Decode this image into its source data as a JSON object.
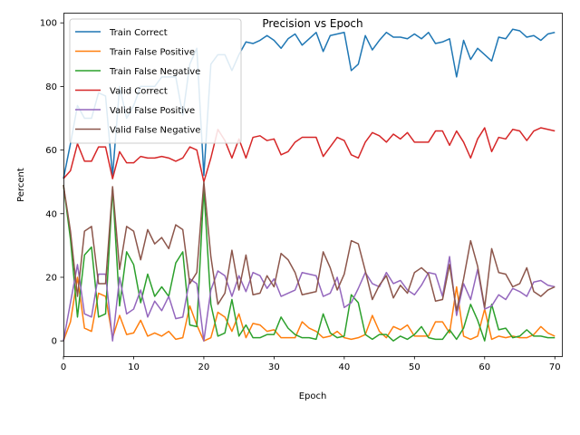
{
  "chart_data": {
    "type": "line",
    "title": "Precision vs Epoch",
    "xlabel": "Epoch",
    "ylabel": "Percent",
    "xlim": [
      0,
      71
    ],
    "ylim": [
      -4.8,
      103.2
    ],
    "xticks": [
      0,
      10,
      20,
      30,
      40,
      50,
      60,
      70
    ],
    "yticks": [
      0,
      20,
      40,
      60,
      80,
      100
    ],
    "legend_position": "upper-left",
    "grid": false,
    "x": [
      0,
      1,
      2,
      3,
      4,
      5,
      6,
      7,
      8,
      9,
      10,
      11,
      12,
      13,
      14,
      15,
      16,
      17,
      18,
      19,
      20,
      21,
      22,
      23,
      24,
      25,
      26,
      27,
      28,
      29,
      30,
      31,
      32,
      33,
      34,
      35,
      36,
      37,
      38,
      39,
      40,
      41,
      42,
      43,
      44,
      45,
      46,
      47,
      48,
      49,
      50,
      51,
      52,
      53,
      54,
      55,
      56,
      57,
      58,
      59,
      60,
      61,
      62,
      63,
      64,
      65,
      66,
      67,
      68,
      69,
      70
    ],
    "series": [
      {
        "name": "Train Correct",
        "color": "#1f77b4",
        "values": [
          51,
          62,
          74,
          70,
          70,
          78,
          77,
          52,
          80,
          70,
          74,
          80,
          80,
          80,
          83,
          83,
          83,
          71,
          87,
          92,
          52,
          87,
          90,
          90,
          85,
          90,
          94,
          93.5,
          94.5,
          96,
          94.5,
          92,
          95,
          96.5,
          93,
          95,
          97,
          91,
          96,
          96.5,
          97,
          85,
          87,
          96,
          91.5,
          94.5,
          97,
          95.5,
          95.5,
          95,
          96.5,
          95,
          97,
          93.5,
          94,
          95,
          83,
          94.5,
          88.5,
          92,
          90,
          88,
          95.5,
          95,
          98,
          97.5,
          95.5,
          96,
          94.5,
          96.5,
          97
        ]
      },
      {
        "name": "Train False Positive",
        "color": "#ff7f0e",
        "values": [
          0,
          6,
          20,
          4,
          3,
          15,
          14,
          1,
          8,
          2,
          2.5,
          6.5,
          1.5,
          2.5,
          1.5,
          3,
          0.5,
          1,
          11,
          5,
          0,
          1,
          9,
          7.5,
          3,
          8.5,
          1,
          5.5,
          5,
          3,
          3.5,
          1,
          1,
          1,
          6,
          4,
          3,
          1,
          1.5,
          3,
          1,
          0.5,
          1,
          2,
          8,
          3,
          1,
          4.5,
          3.5,
          5,
          1.5,
          1.5,
          1.5,
          6,
          6,
          2.5,
          17,
          1.5,
          0.5,
          1.5,
          10,
          0.5,
          1.5,
          1,
          1.5,
          1,
          1,
          2,
          4.5,
          2.5,
          1.5
        ]
      },
      {
        "name": "Train False Negative",
        "color": "#2ca02c",
        "values": [
          49,
          32,
          7.5,
          27,
          29.5,
          7.5,
          8.5,
          48,
          11,
          28,
          24,
          12,
          21,
          14,
          17,
          14,
          24.5,
          28,
          5,
          4.5,
          48,
          11.5,
          1.5,
          2.5,
          13,
          1.5,
          5,
          1,
          1,
          2,
          2,
          7.5,
          4,
          2,
          1,
          1,
          0.5,
          8.5,
          2.5,
          1,
          1.5,
          14.5,
          12,
          2,
          0.5,
          2,
          2,
          0,
          1.5,
          0.5,
          2,
          4.5,
          1,
          0.5,
          0.5,
          3.5,
          0.5,
          4,
          11.5,
          6.5,
          0,
          11.5,
          3.5,
          4,
          1,
          1.5,
          3.5,
          1.5,
          1.5,
          1,
          1
        ]
      },
      {
        "name": "Valid Correct",
        "color": "#d62728",
        "values": [
          51,
          53.5,
          62,
          56.5,
          56.5,
          61,
          61,
          51,
          59.5,
          56,
          56,
          58,
          57.5,
          57.5,
          58,
          57.5,
          56.5,
          57.5,
          61,
          60,
          50,
          57.5,
          66.5,
          63,
          57.5,
          63.5,
          57.5,
          64,
          64.5,
          63,
          63.5,
          58.5,
          59.5,
          62.5,
          64,
          64,
          64,
          58,
          61,
          64,
          63,
          58.5,
          57.5,
          62.5,
          65.5,
          64.5,
          62.5,
          65,
          63.5,
          65.5,
          62.5,
          62.5,
          62.5,
          66,
          66,
          61.5,
          66,
          62.5,
          57.5,
          63.5,
          67,
          59.5,
          64,
          63.5,
          66.5,
          66,
          63,
          66,
          67,
          66.5,
          66
        ]
      },
      {
        "name": "Valid False Positive",
        "color": "#9467bd",
        "values": [
          0,
          12,
          24,
          8.5,
          7.5,
          21,
          21,
          0,
          20,
          8.5,
          10,
          16,
          7.5,
          12.5,
          9.5,
          14,
          7,
          7.5,
          19.5,
          18,
          0,
          16,
          22,
          20.5,
          14,
          20.5,
          15.5,
          21.5,
          20.5,
          16.5,
          19.5,
          14,
          15,
          16,
          21.5,
          21,
          20.5,
          14,
          15,
          20,
          10.5,
          12,
          16.5,
          21.5,
          18,
          17,
          21.5,
          18,
          19,
          16,
          14.5,
          17.5,
          21.5,
          21,
          14,
          26.5,
          8,
          18,
          13,
          22.5,
          10,
          11,
          14.5,
          13,
          16.5,
          15.5,
          14,
          18.5,
          19,
          17.5,
          17
        ]
      },
      {
        "name": "Valid False Negative",
        "color": "#8c564b",
        "values": [
          49,
          34.5,
          14,
          34.5,
          36,
          18,
          18,
          48.5,
          22.5,
          36,
          34.5,
          25.5,
          35,
          30.5,
          32.5,
          29,
          36.5,
          35,
          18,
          21.5,
          50,
          26.5,
          11.5,
          15,
          28.5,
          16,
          27,
          14.5,
          15,
          20.5,
          17,
          27.5,
          25.5,
          21.5,
          14.5,
          15,
          15.5,
          28,
          23,
          16,
          21,
          31.5,
          30.5,
          22,
          13,
          17.5,
          20.5,
          13.5,
          17.5,
          15,
          21.5,
          23,
          21,
          12.5,
          13,
          24,
          9.5,
          19.5,
          31.5,
          23.5,
          10.5,
          29,
          21.5,
          21,
          17,
          18,
          23,
          15.5,
          14,
          16,
          17
        ]
      }
    ]
  }
}
